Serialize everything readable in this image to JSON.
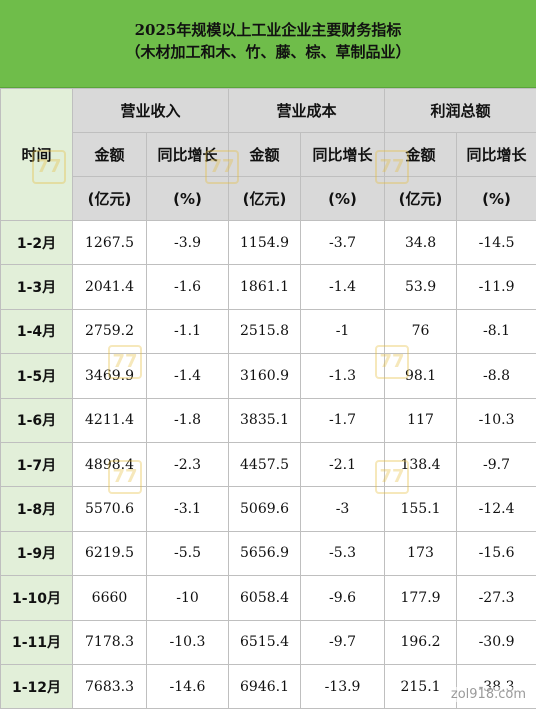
{
  "title": {
    "line1": "2025年规模以上工业企业主要财务指标",
    "line2": "（木材加工和木、竹、藤、棕、草制品业）"
  },
  "header": {
    "time": "时间",
    "groups": [
      "营业收入",
      "营业成本",
      "利润总额"
    ],
    "sub": [
      "金额",
      "同比增长"
    ],
    "units": [
      "(亿元)",
      "(%)"
    ]
  },
  "rows": [
    {
      "period": "1-2月",
      "cells": [
        "1267.5",
        "-3.9",
        "1154.9",
        "-3.7",
        "34.8",
        "-14.5"
      ]
    },
    {
      "period": "1-3月",
      "cells": [
        "2041.4",
        "-1.6",
        "1861.1",
        "-1.4",
        "53.9",
        "-11.9"
      ]
    },
    {
      "period": "1-4月",
      "cells": [
        "2759.2",
        "-1.1",
        "2515.8",
        "-1",
        "76",
        "-8.1"
      ]
    },
    {
      "period": "1-5月",
      "cells": [
        "3469.9",
        "-1.4",
        "3160.9",
        "-1.3",
        "98.1",
        "-8.8"
      ]
    },
    {
      "period": "1-6月",
      "cells": [
        "4211.4",
        "-1.8",
        "3835.1",
        "-1.7",
        "117",
        "-10.3"
      ]
    },
    {
      "period": "1-7月",
      "cells": [
        "4898.4",
        "-2.3",
        "4457.5",
        "-2.1",
        "138.4",
        "-9.7"
      ]
    },
    {
      "period": "1-8月",
      "cells": [
        "5570.6",
        "-3.1",
        "5069.6",
        "-3",
        "155.1",
        "-12.4"
      ]
    },
    {
      "period": "1-9月",
      "cells": [
        "6219.5",
        "-5.5",
        "5656.9",
        "-5.3",
        "173",
        "-15.6"
      ]
    },
    {
      "period": "1-10月",
      "cells": [
        "6660",
        "-10",
        "6058.4",
        "-9.6",
        "177.9",
        "-27.3"
      ]
    },
    {
      "period": "1-11月",
      "cells": [
        "7178.3",
        "-10.3",
        "6515.4",
        "-9.7",
        "196.2",
        "-30.9"
      ]
    },
    {
      "period": "1-12月",
      "cells": [
        "7683.3",
        "-14.6",
        "6946.1",
        "-13.9",
        "215.1",
        "-38.3"
      ]
    }
  ],
  "watermark": {
    "logo_text": "77",
    "site": "zol918.com"
  },
  "colors": {
    "title_bg": "#6fbd4a",
    "header_bg": "#d9d9d9",
    "period_bg": "#e2efd9",
    "border": "#bfbfbf"
  }
}
